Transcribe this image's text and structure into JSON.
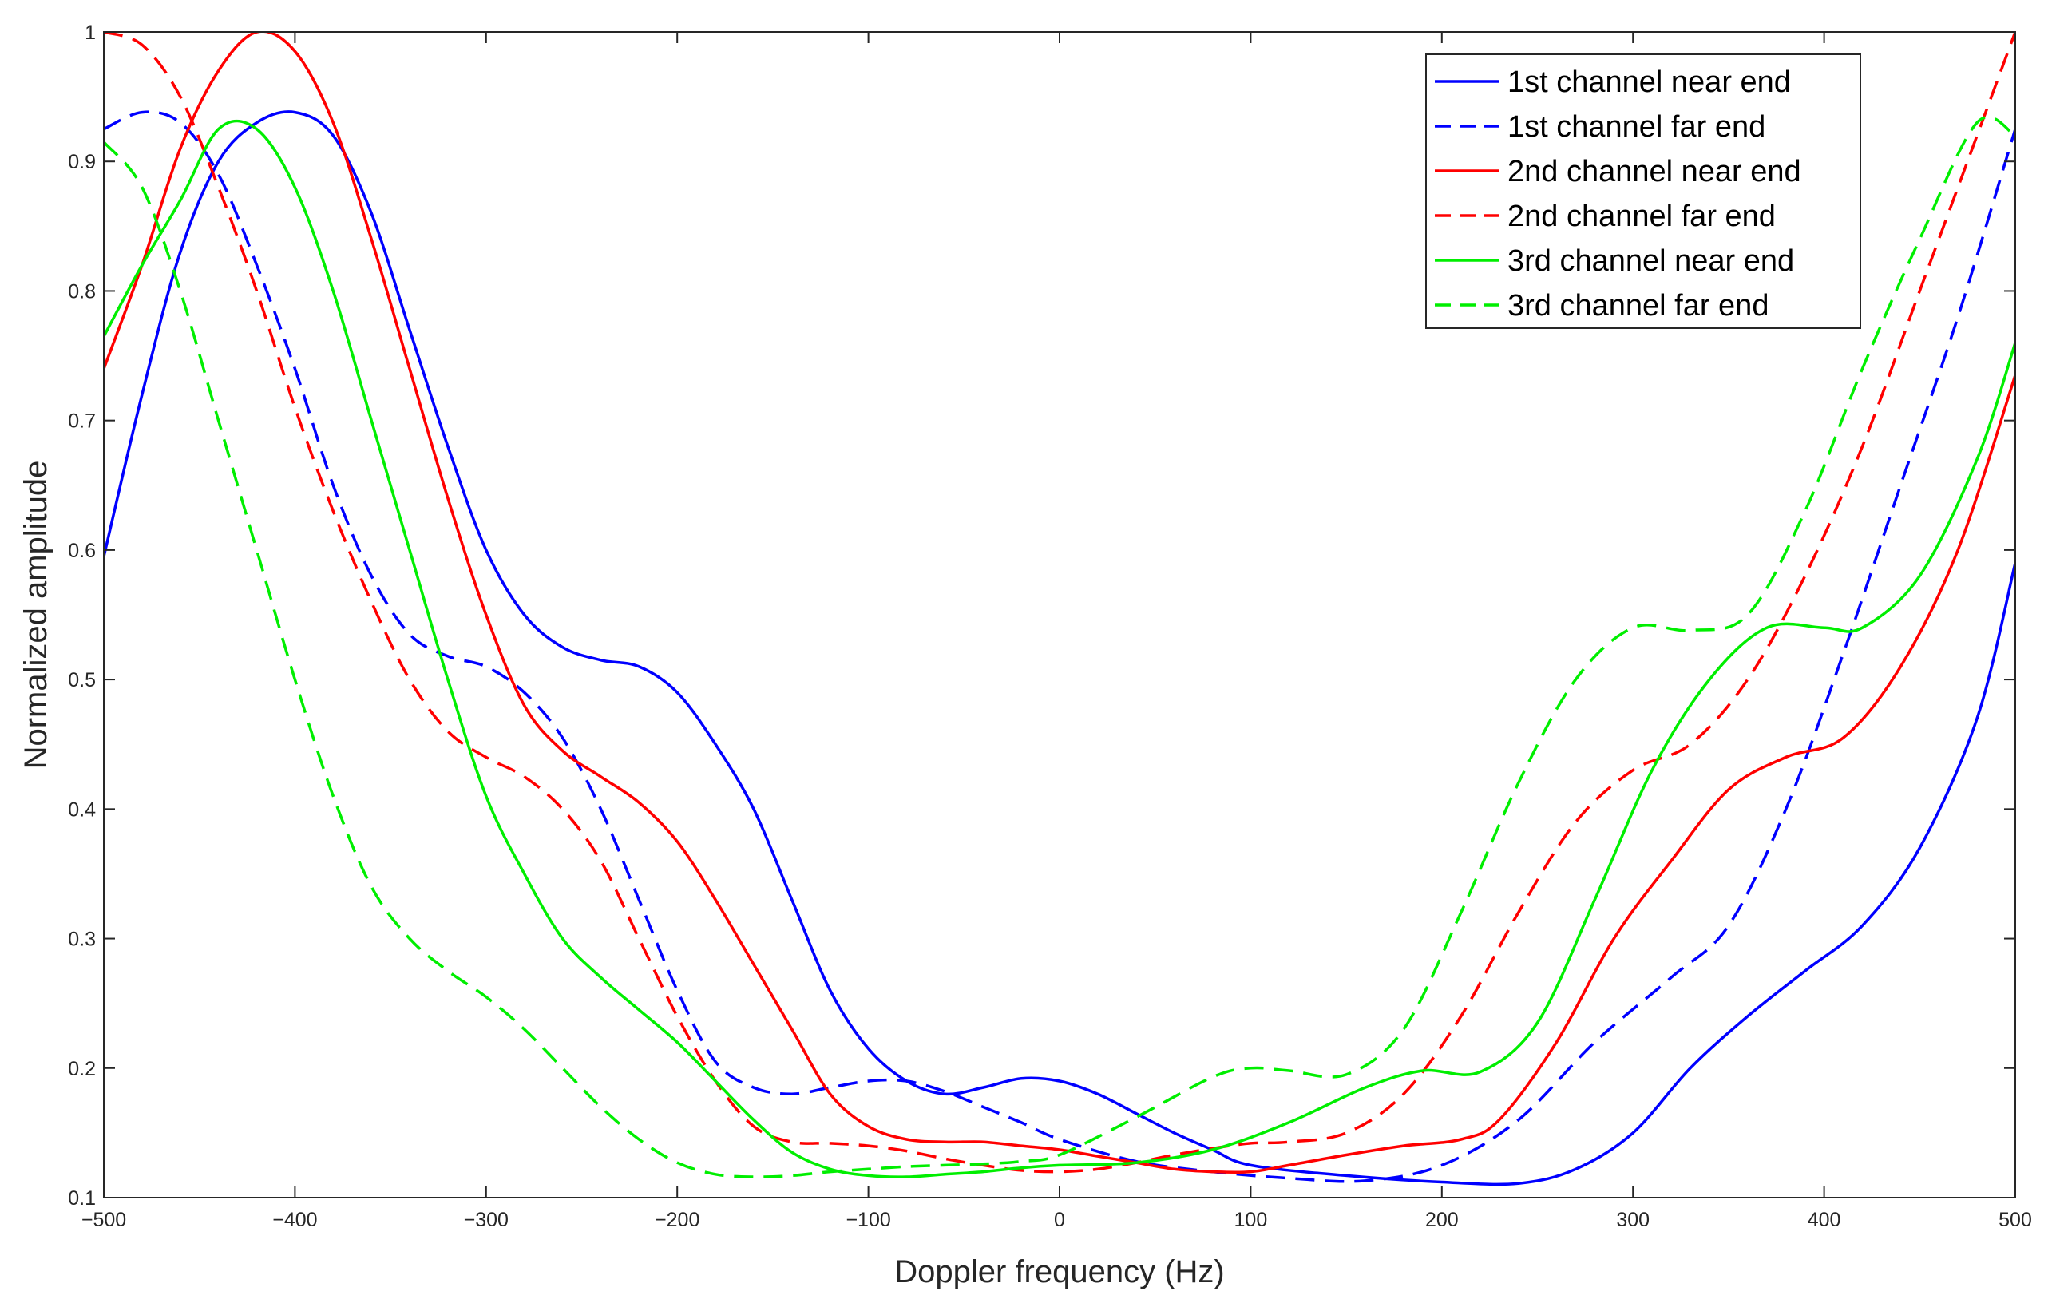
{
  "chart_data": {
    "type": "line",
    "title": "",
    "xlabel": "Doppler frequency (Hz)",
    "ylabel": "Normalized amplitude",
    "xlim": [
      -500,
      500
    ],
    "ylim": [
      0.1,
      1
    ],
    "grid": false,
    "legend_position": "top-right",
    "x_ticks": [
      -500,
      -400,
      -300,
      -200,
      -100,
      0,
      100,
      200,
      300,
      400,
      500
    ],
    "x_tick_labels": [
      "−500",
      "−400",
      "−300",
      "−200",
      "−100",
      "0",
      "100",
      "200",
      "300",
      "400",
      "500"
    ],
    "y_ticks": [
      0.1,
      0.2,
      0.3,
      0.4,
      0.5,
      0.6,
      0.7,
      0.8,
      0.9,
      1.0
    ],
    "y_tick_labels": [
      "0.1",
      "0.2",
      "0.3",
      "0.4",
      "0.5",
      "0.6",
      "0.7",
      "0.8",
      "0.9",
      "1"
    ],
    "series": [
      {
        "name": "1st channel near end",
        "color": "#0000ff",
        "dash": "solid",
        "points": [
          [
            -500,
            0.595
          ],
          [
            -480,
            0.72
          ],
          [
            -460,
            0.83
          ],
          [
            -440,
            0.9
          ],
          [
            -420,
            0.93
          ],
          [
            -400,
            0.938
          ],
          [
            -380,
            0.92
          ],
          [
            -360,
            0.86
          ],
          [
            -340,
            0.77
          ],
          [
            -320,
            0.68
          ],
          [
            -300,
            0.6
          ],
          [
            -280,
            0.55
          ],
          [
            -260,
            0.525
          ],
          [
            -240,
            0.515
          ],
          [
            -220,
            0.51
          ],
          [
            -200,
            0.49
          ],
          [
            -180,
            0.45
          ],
          [
            -160,
            0.4
          ],
          [
            -140,
            0.33
          ],
          [
            -120,
            0.26
          ],
          [
            -100,
            0.215
          ],
          [
            -80,
            0.19
          ],
          [
            -60,
            0.18
          ],
          [
            -40,
            0.185
          ],
          [
            -20,
            0.192
          ],
          [
            0,
            0.19
          ],
          [
            20,
            0.18
          ],
          [
            40,
            0.165
          ],
          [
            60,
            0.15
          ],
          [
            80,
            0.137
          ],
          [
            100,
            0.125
          ],
          [
            150,
            0.117
          ],
          [
            200,
            0.112
          ],
          [
            240,
            0.111
          ],
          [
            270,
            0.122
          ],
          [
            300,
            0.15
          ],
          [
            330,
            0.2
          ],
          [
            360,
            0.24
          ],
          [
            390,
            0.275
          ],
          [
            420,
            0.31
          ],
          [
            450,
            0.37
          ],
          [
            480,
            0.47
          ],
          [
            500,
            0.59
          ]
        ]
      },
      {
        "name": "1st channel far end",
        "color": "#0000ff",
        "dash": "dashed",
        "points": [
          [
            -500,
            0.925
          ],
          [
            -480,
            0.938
          ],
          [
            -460,
            0.93
          ],
          [
            -440,
            0.89
          ],
          [
            -420,
            0.82
          ],
          [
            -400,
            0.74
          ],
          [
            -380,
            0.65
          ],
          [
            -360,
            0.58
          ],
          [
            -340,
            0.535
          ],
          [
            -320,
            0.518
          ],
          [
            -300,
            0.51
          ],
          [
            -280,
            0.49
          ],
          [
            -260,
            0.455
          ],
          [
            -240,
            0.4
          ],
          [
            -220,
            0.33
          ],
          [
            -200,
            0.26
          ],
          [
            -180,
            0.205
          ],
          [
            -160,
            0.185
          ],
          [
            -140,
            0.18
          ],
          [
            -120,
            0.185
          ],
          [
            -100,
            0.19
          ],
          [
            -80,
            0.19
          ],
          [
            -60,
            0.182
          ],
          [
            -40,
            0.17
          ],
          [
            -20,
            0.158
          ],
          [
            0,
            0.145
          ],
          [
            40,
            0.128
          ],
          [
            80,
            0.12
          ],
          [
            120,
            0.115
          ],
          [
            160,
            0.113
          ],
          [
            200,
            0.125
          ],
          [
            240,
            0.16
          ],
          [
            280,
            0.22
          ],
          [
            320,
            0.27
          ],
          [
            350,
            0.31
          ],
          [
            380,
            0.4
          ],
          [
            410,
            0.52
          ],
          [
            440,
            0.65
          ],
          [
            470,
            0.78
          ],
          [
            500,
            0.925
          ]
        ]
      },
      {
        "name": "2nd channel near end",
        "color": "#ff0000",
        "dash": "solid",
        "points": [
          [
            -500,
            0.74
          ],
          [
            -480,
            0.82
          ],
          [
            -460,
            0.91
          ],
          [
            -440,
            0.97
          ],
          [
            -420,
            1.0
          ],
          [
            -400,
            0.985
          ],
          [
            -380,
            0.93
          ],
          [
            -360,
            0.84
          ],
          [
            -340,
            0.74
          ],
          [
            -320,
            0.64
          ],
          [
            -300,
            0.55
          ],
          [
            -280,
            0.48
          ],
          [
            -260,
            0.445
          ],
          [
            -240,
            0.425
          ],
          [
            -220,
            0.405
          ],
          [
            -200,
            0.375
          ],
          [
            -180,
            0.33
          ],
          [
            -160,
            0.28
          ],
          [
            -140,
            0.23
          ],
          [
            -120,
            0.18
          ],
          [
            -100,
            0.155
          ],
          [
            -80,
            0.145
          ],
          [
            -60,
            0.143
          ],
          [
            -40,
            0.143
          ],
          [
            -20,
            0.14
          ],
          [
            0,
            0.137
          ],
          [
            20,
            0.132
          ],
          [
            40,
            0.127
          ],
          [
            60,
            0.122
          ],
          [
            80,
            0.12
          ],
          [
            100,
            0.12
          ],
          [
            120,
            0.125
          ],
          [
            150,
            0.133
          ],
          [
            180,
            0.14
          ],
          [
            210,
            0.145
          ],
          [
            230,
            0.16
          ],
          [
            260,
            0.22
          ],
          [
            290,
            0.3
          ],
          [
            320,
            0.36
          ],
          [
            350,
            0.415
          ],
          [
            380,
            0.44
          ],
          [
            410,
            0.455
          ],
          [
            440,
            0.51
          ],
          [
            470,
            0.6
          ],
          [
            500,
            0.735
          ]
        ]
      },
      {
        "name": "2nd channel far end",
        "color": "#ff0000",
        "dash": "dashed",
        "points": [
          [
            -500,
            1.0
          ],
          [
            -480,
            0.99
          ],
          [
            -460,
            0.95
          ],
          [
            -440,
            0.88
          ],
          [
            -420,
            0.8
          ],
          [
            -400,
            0.71
          ],
          [
            -380,
            0.63
          ],
          [
            -360,
            0.56
          ],
          [
            -340,
            0.5
          ],
          [
            -320,
            0.46
          ],
          [
            -300,
            0.44
          ],
          [
            -280,
            0.425
          ],
          [
            -260,
            0.4
          ],
          [
            -240,
            0.36
          ],
          [
            -220,
            0.3
          ],
          [
            -200,
            0.24
          ],
          [
            -180,
            0.19
          ],
          [
            -160,
            0.155
          ],
          [
            -140,
            0.143
          ],
          [
            -120,
            0.142
          ],
          [
            -100,
            0.14
          ],
          [
            -80,
            0.136
          ],
          [
            -60,
            0.13
          ],
          [
            -40,
            0.125
          ],
          [
            -20,
            0.121
          ],
          [
            0,
            0.12
          ],
          [
            20,
            0.122
          ],
          [
            40,
            0.127
          ],
          [
            60,
            0.133
          ],
          [
            80,
            0.138
          ],
          [
            100,
            0.142
          ],
          [
            120,
            0.143
          ],
          [
            150,
            0.15
          ],
          [
            180,
            0.18
          ],
          [
            210,
            0.24
          ],
          [
            240,
            0.32
          ],
          [
            270,
            0.39
          ],
          [
            300,
            0.43
          ],
          [
            330,
            0.45
          ],
          [
            360,
            0.5
          ],
          [
            390,
            0.58
          ],
          [
            420,
            0.68
          ],
          [
            450,
            0.8
          ],
          [
            480,
            0.92
          ],
          [
            500,
            1.0
          ]
        ]
      },
      {
        "name": "3rd channel near end",
        "color": "#00ee00",
        "dash": "solid",
        "points": [
          [
            -500,
            0.765
          ],
          [
            -480,
            0.82
          ],
          [
            -460,
            0.87
          ],
          [
            -440,
            0.925
          ],
          [
            -420,
            0.925
          ],
          [
            -400,
            0.88
          ],
          [
            -380,
            0.8
          ],
          [
            -360,
            0.7
          ],
          [
            -340,
            0.6
          ],
          [
            -320,
            0.5
          ],
          [
            -300,
            0.41
          ],
          [
            -280,
            0.35
          ],
          [
            -260,
            0.3
          ],
          [
            -240,
            0.27
          ],
          [
            -220,
            0.245
          ],
          [
            -200,
            0.22
          ],
          [
            -180,
            0.19
          ],
          [
            -160,
            0.16
          ],
          [
            -140,
            0.135
          ],
          [
            -120,
            0.122
          ],
          [
            -100,
            0.117
          ],
          [
            -80,
            0.116
          ],
          [
            -60,
            0.118
          ],
          [
            -40,
            0.12
          ],
          [
            -20,
            0.123
          ],
          [
            0,
            0.125
          ],
          [
            40,
            0.127
          ],
          [
            80,
            0.137
          ],
          [
            120,
            0.158
          ],
          [
            160,
            0.185
          ],
          [
            190,
            0.198
          ],
          [
            220,
            0.197
          ],
          [
            250,
            0.235
          ],
          [
            280,
            0.33
          ],
          [
            310,
            0.43
          ],
          [
            340,
            0.5
          ],
          [
            370,
            0.54
          ],
          [
            400,
            0.54
          ],
          [
            420,
            0.54
          ],
          [
            450,
            0.58
          ],
          [
            480,
            0.67
          ],
          [
            500,
            0.76
          ]
        ]
      },
      {
        "name": "3rd channel far end",
        "color": "#00ee00",
        "dash": "dashed",
        "points": [
          [
            -500,
            0.915
          ],
          [
            -480,
            0.88
          ],
          [
            -460,
            0.8
          ],
          [
            -440,
            0.7
          ],
          [
            -420,
            0.6
          ],
          [
            -400,
            0.5
          ],
          [
            -380,
            0.41
          ],
          [
            -360,
            0.34
          ],
          [
            -340,
            0.3
          ],
          [
            -320,
            0.275
          ],
          [
            -300,
            0.255
          ],
          [
            -280,
            0.23
          ],
          [
            -260,
            0.2
          ],
          [
            -240,
            0.17
          ],
          [
            -220,
            0.145
          ],
          [
            -200,
            0.127
          ],
          [
            -180,
            0.118
          ],
          [
            -160,
            0.116
          ],
          [
            -140,
            0.117
          ],
          [
            -120,
            0.12
          ],
          [
            -100,
            0.122
          ],
          [
            -80,
            0.124
          ],
          [
            -60,
            0.125
          ],
          [
            -40,
            0.126
          ],
          [
            -20,
            0.128
          ],
          [
            0,
            0.133
          ],
          [
            40,
            0.162
          ],
          [
            80,
            0.193
          ],
          [
            100,
            0.2
          ],
          [
            120,
            0.198
          ],
          [
            150,
            0.195
          ],
          [
            180,
            0.23
          ],
          [
            210,
            0.32
          ],
          [
            240,
            0.42
          ],
          [
            270,
            0.5
          ],
          [
            300,
            0.54
          ],
          [
            330,
            0.538
          ],
          [
            360,
            0.55
          ],
          [
            390,
            0.63
          ],
          [
            420,
            0.74
          ],
          [
            450,
            0.84
          ],
          [
            480,
            0.93
          ],
          [
            500,
            0.92
          ]
        ]
      }
    ]
  }
}
